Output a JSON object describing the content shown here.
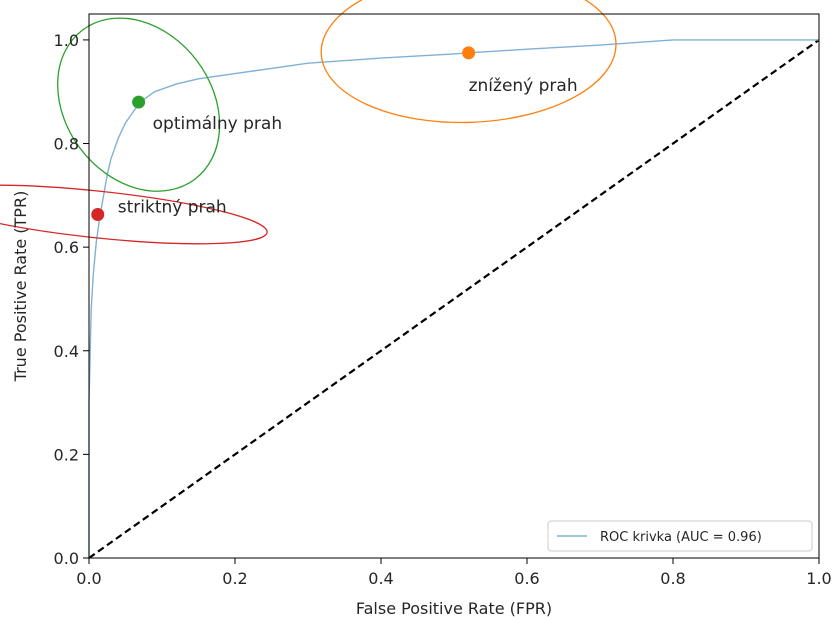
{
  "chart_data": {
    "type": "line",
    "xlabel": "False Positive Rate (FPR)",
    "ylabel": "True Positive Rate (TPR)",
    "xlim": [
      0.0,
      1.0
    ],
    "ylim": [
      0.0,
      1.05
    ],
    "x_ticks": [
      "0.0",
      "0.2",
      "0.4",
      "0.6",
      "0.8",
      "1.0"
    ],
    "y_ticks": [
      "0.0",
      "0.2",
      "0.4",
      "0.6",
      "0.8",
      "1.0"
    ],
    "grid": false,
    "legend_position": "lower-right",
    "series": [
      {
        "name": "ROC krivka (AUC = 0.96)",
        "color": "#7fb1d6",
        "x": [
          0.0,
          0.0,
          0.003,
          0.006,
          0.01,
          0.015,
          0.02,
          0.025,
          0.03,
          0.04,
          0.05,
          0.07,
          0.09,
          0.12,
          0.15,
          0.2,
          0.25,
          0.3,
          0.4,
          0.5,
          0.52,
          0.6,
          0.7,
          0.8,
          0.9,
          1.0
        ],
        "y": [
          0.0,
          0.3,
          0.48,
          0.55,
          0.61,
          0.66,
          0.7,
          0.74,
          0.77,
          0.81,
          0.84,
          0.88,
          0.9,
          0.915,
          0.925,
          0.935,
          0.945,
          0.955,
          0.965,
          0.973,
          0.975,
          0.982,
          0.99,
          1.0,
          1.0,
          1.0
        ]
      },
      {
        "name": "",
        "style": "dashed",
        "color": "#000000",
        "x": [
          0.0,
          1.0
        ],
        "y": [
          0.0,
          1.0
        ]
      }
    ],
    "annotations": [
      {
        "label": "striktný prah",
        "x": 0.012,
        "y": 0.663,
        "color": "#d62728"
      },
      {
        "label": "optimálny prah",
        "x": 0.068,
        "y": 0.88,
        "color": "#2ca02c"
      },
      {
        "label": "znížený prah",
        "x": 0.52,
        "y": 0.975,
        "color": "#ff7f0e"
      }
    ],
    "highlight_ellipses": [
      {
        "color": "#d62728",
        "cx": 0.012,
        "cy": 0.663,
        "rx": 0.032,
        "ry": 0.062,
        "angle": -84
      },
      {
        "color": "#2ca02c",
        "cx": 0.068,
        "cy": 0.875,
        "rx": 0.1,
        "ry": 0.034,
        "angle": -37
      },
      {
        "color": "#ff7f0e",
        "cx": 0.52,
        "cy": 0.984,
        "rx": 0.202,
        "ry": 0.027,
        "angle": -2
      }
    ]
  }
}
